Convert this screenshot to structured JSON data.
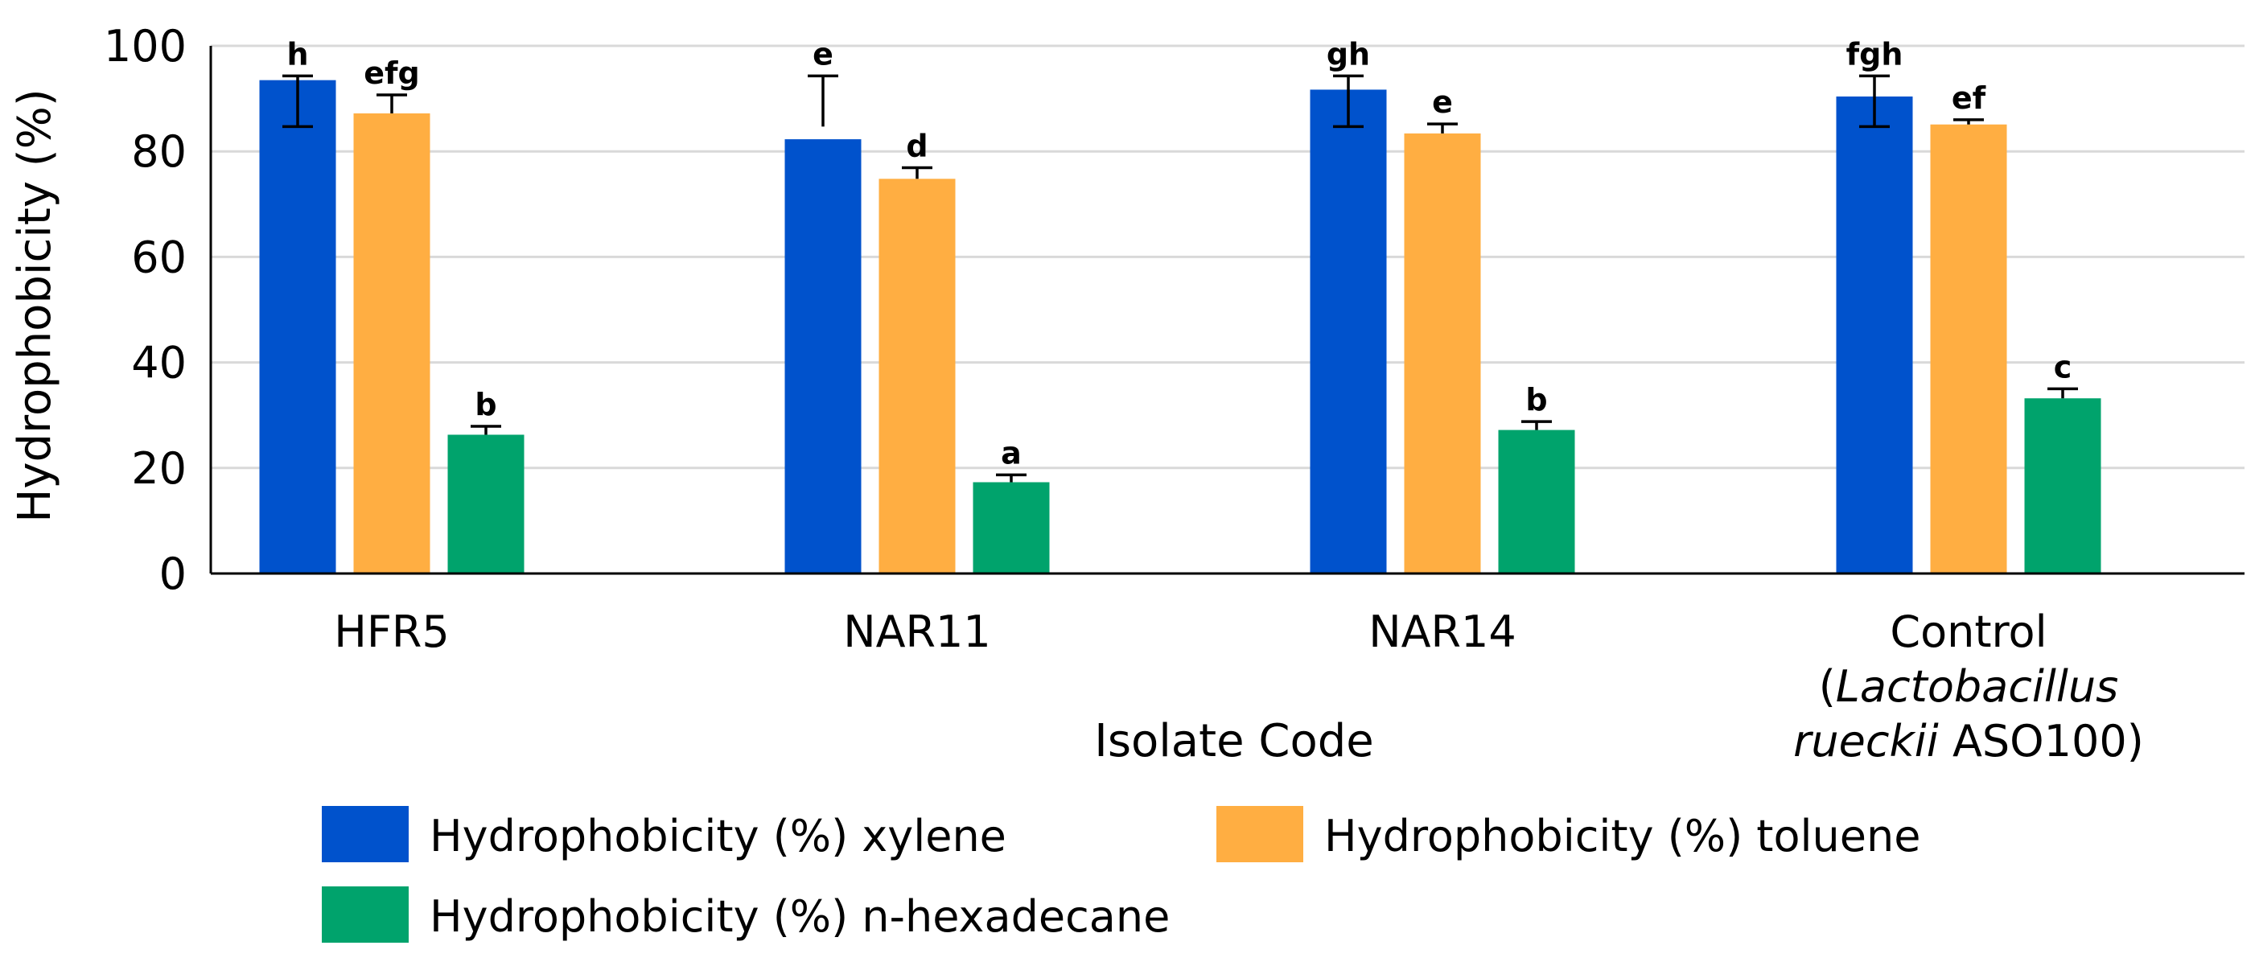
{
  "chart_data": {
    "type": "bar",
    "title": "",
    "xlabel": "Isolate Code",
    "ylabel": "Hydrophobicity (%)",
    "ylim": [
      0,
      100
    ],
    "yticks": [
      "0",
      "20",
      "40",
      "60",
      "80",
      "100"
    ],
    "grid": true,
    "categories": [
      {
        "lines": [
          {
            "parts": [
              {
                "text": "HFR5",
                "italic": false
              }
            ]
          }
        ]
      },
      {
        "lines": [
          {
            "parts": [
              {
                "text": "NAR11",
                "italic": false
              }
            ]
          }
        ]
      },
      {
        "lines": [
          {
            "parts": [
              {
                "text": "NAR14",
                "italic": false
              }
            ]
          }
        ]
      },
      {
        "lines": [
          {
            "parts": [
              {
                "text": "Control",
                "italic": false
              }
            ]
          },
          {
            "parts": [
              {
                "text": "(",
                "italic": false
              },
              {
                "text": "Lactobacillus",
                "italic": true
              }
            ]
          },
          {
            "parts": [
              {
                "text": "rueckii",
                "italic": true
              },
              {
                "text": " ASO100)",
                "italic": false
              }
            ]
          }
        ]
      }
    ],
    "series": [
      {
        "name": "Hydrophobicity (%) xylene",
        "color": "#0052CC",
        "values": [
          93.5,
          82.3,
          91.7,
          90.4
        ],
        "error_low": [
          84.7,
          84.7,
          84.7,
          84.7
        ],
        "error_high": [
          94.3,
          94.3,
          94.3,
          94.3
        ],
        "labels": [
          "h",
          "e",
          "gh",
          "fgh"
        ]
      },
      {
        "name": "Hydrophobicity (%) toluene",
        "color": "#FFAE42",
        "values": [
          87.2,
          74.8,
          83.4,
          85.1
        ],
        "error_low": [
          87.2,
          74.8,
          83.4,
          85.1
        ],
        "error_high": [
          90.7,
          76.9,
          85.2,
          86.0
        ],
        "labels": [
          "efg",
          "d",
          "e",
          "ef"
        ]
      },
      {
        "name": "Hydrophobicity (%) n-hexadecane",
        "color": "#00A36C",
        "values": [
          26.3,
          17.3,
          27.2,
          33.2
        ],
        "error_low": [
          26.3,
          17.3,
          27.2,
          33.2
        ],
        "error_high": [
          27.9,
          18.7,
          28.8,
          35.0
        ],
        "labels": [
          "b",
          "a",
          "b",
          "c"
        ]
      }
    ],
    "legend": {
      "placement": "bottom",
      "items": [
        "Hydrophobicity (%) xylene",
        "Hydrophobicity (%) toluene",
        "Hydrophobicity (%) n-hexadecane"
      ]
    }
  }
}
